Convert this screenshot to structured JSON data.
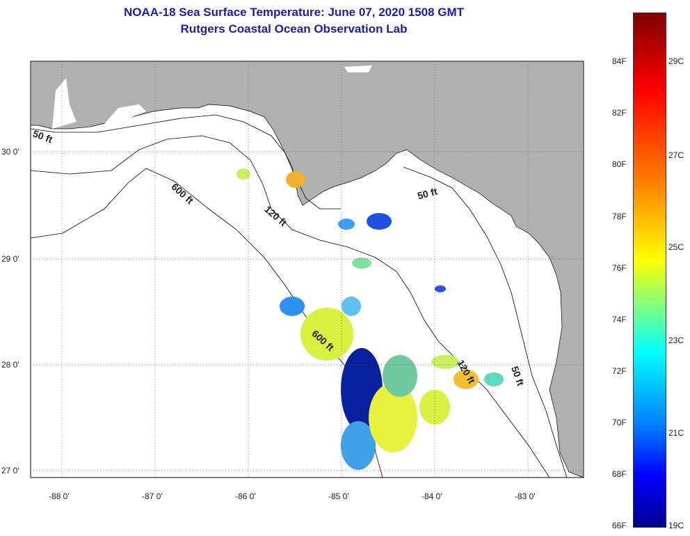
{
  "title": {
    "line1": "NOAA-18 Sea Surface Temperature:  June 07, 2020 1508 GMT",
    "line2": "Rutgers Coastal Ocean Observation Lab"
  },
  "map": {
    "lat_labels": [
      "30 0'",
      "29 0'",
      "28 0'",
      "27 0'"
    ],
    "lon_labels": [
      "-88 0'",
      "-87 0'",
      "-86 0'",
      "-85 0'",
      "-84 0'",
      "-83 0'"
    ],
    "land_color": "#b0b0b0",
    "water_color": "#ffffff",
    "contour_labels": [
      {
        "text": "50 ft",
        "rotation": 20
      },
      {
        "text": "600 ft",
        "rotation": 42
      },
      {
        "text": "120 ft",
        "rotation": 40
      },
      {
        "text": "50 ft",
        "rotation": -15
      },
      {
        "text": "600 ft",
        "rotation": 42
      },
      {
        "text": "120 ft",
        "rotation": 60
      },
      {
        "text": "50 ft",
        "rotation": 70
      }
    ]
  },
  "colorbar": {
    "fahrenheit": [
      "84F",
      "82F",
      "80F",
      "78F",
      "76F",
      "74F",
      "72F",
      "70F",
      "68F",
      "66F"
    ],
    "celsius": [
      "29C",
      "27C",
      "25C",
      "23C",
      "21C",
      "19C"
    ],
    "colors": [
      "#7f0000",
      "#ff0000",
      "#ff8000",
      "#ffff00",
      "#80ff80",
      "#00ffff",
      "#0080ff",
      "#0000ff",
      "#00008f"
    ]
  }
}
